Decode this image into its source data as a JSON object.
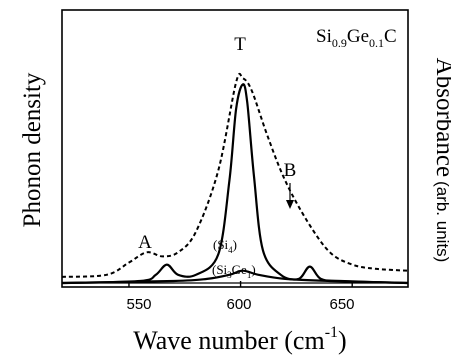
{
  "chart_data": {
    "type": "line",
    "xlabel": "Wave number (cm",
    "xlabel_sup": "-1",
    "xlabel_close": ")",
    "ylabel_left": "Phonon density",
    "ylabel_right": "Absorbance",
    "ylabel_right_unit": "(arb. units)",
    "xlim": [
      520,
      675
    ],
    "ylim": [
      0,
      1.05
    ],
    "xticks": [
      550,
      600,
      650
    ],
    "xticklabels": [
      "550",
      "600",
      "650"
    ],
    "composition": {
      "prefix": "Si",
      "sub1": "0.9",
      "mid": "Ge",
      "sub2": "0.1",
      "suffix": "C"
    },
    "annotations": {
      "T": "T",
      "A": "A",
      "B": "B",
      "si4": {
        "open": "(Si",
        "sub": "4",
        "close": ")"
      },
      "si3ge1": {
        "open": "(Si",
        "sub1": "3",
        "mid": "Ge",
        "sub2": "1",
        "close": ")"
      }
    },
    "series": [
      {
        "style": "dashed",
        "points": [
          [
            520,
            0.03
          ],
          [
            540,
            0.04
          ],
          [
            550,
            0.1
          ],
          [
            558,
            0.15
          ],
          [
            565,
            0.13
          ],
          [
            572,
            0.15
          ],
          [
            580,
            0.25
          ],
          [
            590,
            0.55
          ],
          [
            598,
            0.98
          ],
          [
            601,
            1.0
          ],
          [
            605,
            0.94
          ],
          [
            612,
            0.72
          ],
          [
            620,
            0.5
          ],
          [
            630,
            0.3
          ],
          [
            640,
            0.15
          ],
          [
            650,
            0.09
          ],
          [
            660,
            0.07
          ],
          [
            675,
            0.06
          ]
        ]
      },
      {
        "style": "solid",
        "points": [
          [
            520,
            0.0
          ],
          [
            555,
            0.01
          ],
          [
            562,
            0.04
          ],
          [
            567,
            0.09
          ],
          [
            572,
            0.04
          ],
          [
            580,
            0.04
          ],
          [
            590,
            0.14
          ],
          [
            595,
            0.5
          ],
          [
            598,
            0.85
          ],
          [
            601,
            0.97
          ],
          [
            603,
            0.88
          ],
          [
            606,
            0.52
          ],
          [
            610,
            0.16
          ],
          [
            618,
            0.04
          ],
          [
            626,
            0.02
          ],
          [
            631,
            0.08
          ],
          [
            636,
            0.02
          ],
          [
            645,
            0.01
          ],
          [
            675,
            0.0
          ]
        ]
      },
      {
        "style": "solid",
        "points": [
          [
            520,
            0.0
          ],
          [
            570,
            0.01
          ],
          [
            585,
            0.02
          ],
          [
            595,
            0.04
          ],
          [
            601,
            0.06
          ],
          [
            608,
            0.04
          ],
          [
            620,
            0.02
          ],
          [
            640,
            0.01
          ],
          [
            675,
            0.0
          ]
        ]
      }
    ]
  }
}
